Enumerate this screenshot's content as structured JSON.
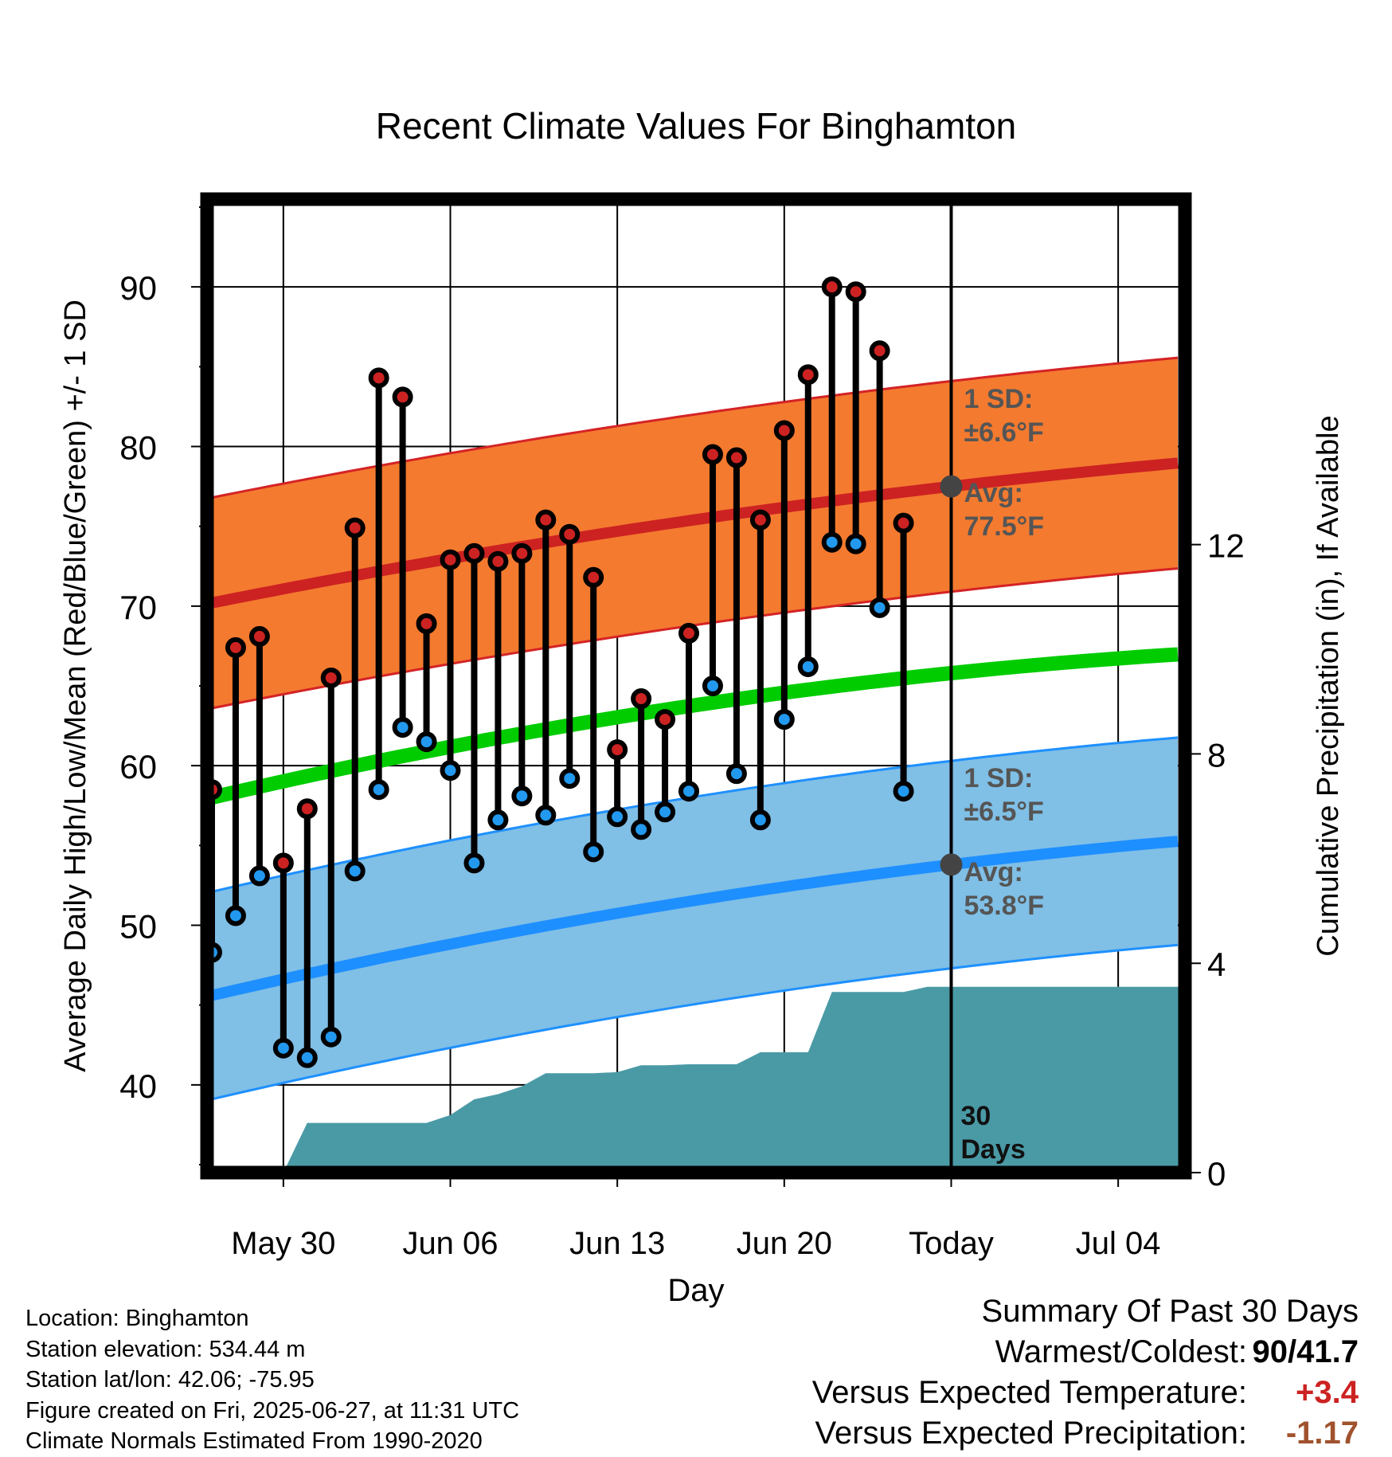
{
  "chart_data": {
    "type": "line",
    "title": "Recent Climate Values For Binghamton",
    "xlabel": "Day",
    "ylabel": "Average Daily High/Low/Mean (Red/Blue/Green) +/- 1 SD",
    "ylabel_right": "Cumulative Precipitation (in), If Available",
    "x_ticks": [
      "May 30",
      "Jun 06",
      "Jun 13",
      "Jun 20",
      "Today",
      "Jul 04"
    ],
    "x_tick_days": [
      30,
      37,
      44,
      51,
      58,
      65
    ],
    "x_range_days": [
      26.8,
      67.8
    ],
    "ylim": [
      34.5,
      95.5
    ],
    "y_ticks": [
      40,
      50,
      60,
      70,
      80,
      90
    ],
    "y2lim": [
      0,
      18.6
    ],
    "y2_ticks": [
      0,
      4,
      8,
      12
    ],
    "today_day": 58,
    "days": [
      27,
      28,
      29,
      30,
      31,
      32,
      33,
      34,
      35,
      36,
      37,
      38,
      39,
      40,
      41,
      42,
      43,
      44,
      45,
      46,
      47,
      48,
      49,
      50,
      51,
      52,
      53,
      54,
      55,
      56,
      57
    ],
    "highs": [
      58.5,
      67.4,
      68.1,
      53.9,
      57.3,
      65.5,
      74.9,
      84.3,
      83.1,
      68.9,
      72.9,
      73.3,
      72.8,
      73.3,
      75.4,
      74.5,
      71.8,
      61,
      64.2,
      62.9,
      68.3,
      79.5,
      79.3,
      75.4,
      81,
      84.5,
      90,
      89.7,
      86,
      75.2,
      null
    ],
    "lows": [
      48.3,
      50.6,
      53.1,
      42.3,
      41.7,
      43,
      53.4,
      58.5,
      62.4,
      61.5,
      59.7,
      53.9,
      56.6,
      58.1,
      56.9,
      59.2,
      54.6,
      56.8,
      56,
      57.1,
      58.4,
      65,
      59.5,
      56.6,
      62.9,
      66.2,
      74,
      73.9,
      69.9,
      58.4,
      null
    ],
    "normal_high": {
      "days": [
        27,
        58,
        67.8
      ],
      "values": [
        70.2,
        77.5,
        79
      ]
    },
    "normal_high_sd": 6.6,
    "normal_low": {
      "days": [
        27,
        58,
        67.8
      ],
      "values": [
        45.6,
        53.8,
        55.3
      ]
    },
    "normal_low_sd": 6.5,
    "normal_mean": {
      "days": [
        27,
        58,
        67.8
      ],
      "values": [
        58,
        65.8,
        67
      ]
    },
    "precip_cumulative": {
      "days": [
        29,
        30,
        31,
        32,
        33,
        34,
        35,
        36,
        37,
        38,
        39,
        40,
        41,
        42,
        43,
        44,
        45,
        46,
        47,
        48,
        49,
        50,
        51,
        52,
        53,
        54,
        55,
        56,
        57,
        58,
        67.8
      ],
      "values": [
        0,
        0,
        0.95,
        0.95,
        0.95,
        0.95,
        0.95,
        0.95,
        1.1,
        1.4,
        1.5,
        1.65,
        1.9,
        1.9,
        1.9,
        1.92,
        2.05,
        2.05,
        2.07,
        2.07,
        2.07,
        2.3,
        2.3,
        2.3,
        3.45,
        3.45,
        3.45,
        3.45,
        3.55,
        3.55,
        3.55
      ]
    },
    "annotations": {
      "high_sd": "1 SD:\n±6.6°F",
      "high_avg": "Avg:\n77.5°F",
      "low_sd": "1 SD:\n±6.5°F",
      "low_avg": "Avg:\n53.8°F",
      "days_label": "30\nDays"
    },
    "colors": {
      "high_band": "#f47a2f",
      "high_band_edge": "#d42326",
      "high_line": "#cc2222",
      "low_band": "#80bfe6",
      "low_band_edge": "#1e90ff",
      "low_line": "#1e8fff",
      "mean_line": "#00cc00",
      "precip": "#4a9aa6",
      "high_dot": "#cc2222",
      "low_dot": "#2299ee",
      "annotation": "#555555",
      "today_dot": "#444444"
    },
    "grid": true
  },
  "info": {
    "location": "Location: Binghamton",
    "elevation": "Station elevation: 534.44 m",
    "latlon": "Station lat/lon: 42.06; -75.95",
    "created": "Figure created on Fri, 2025-06-27, at 11:31 UTC",
    "normals": "Climate Normals Estimated From 1990-2020"
  },
  "summary": {
    "title": "Summary Of Past 30 Days",
    "warm_cold_label": "Warmest/Coldest:",
    "warmest": "90",
    "coldest": "/41.7",
    "temp_label": "Versus Expected Temperature:",
    "temp_value": "+3.4",
    "temp_color": "#cc2222",
    "precip_label": "Versus Expected Precipitation:",
    "precip_value": "-1.17",
    "precip_color": "#a0522d"
  }
}
